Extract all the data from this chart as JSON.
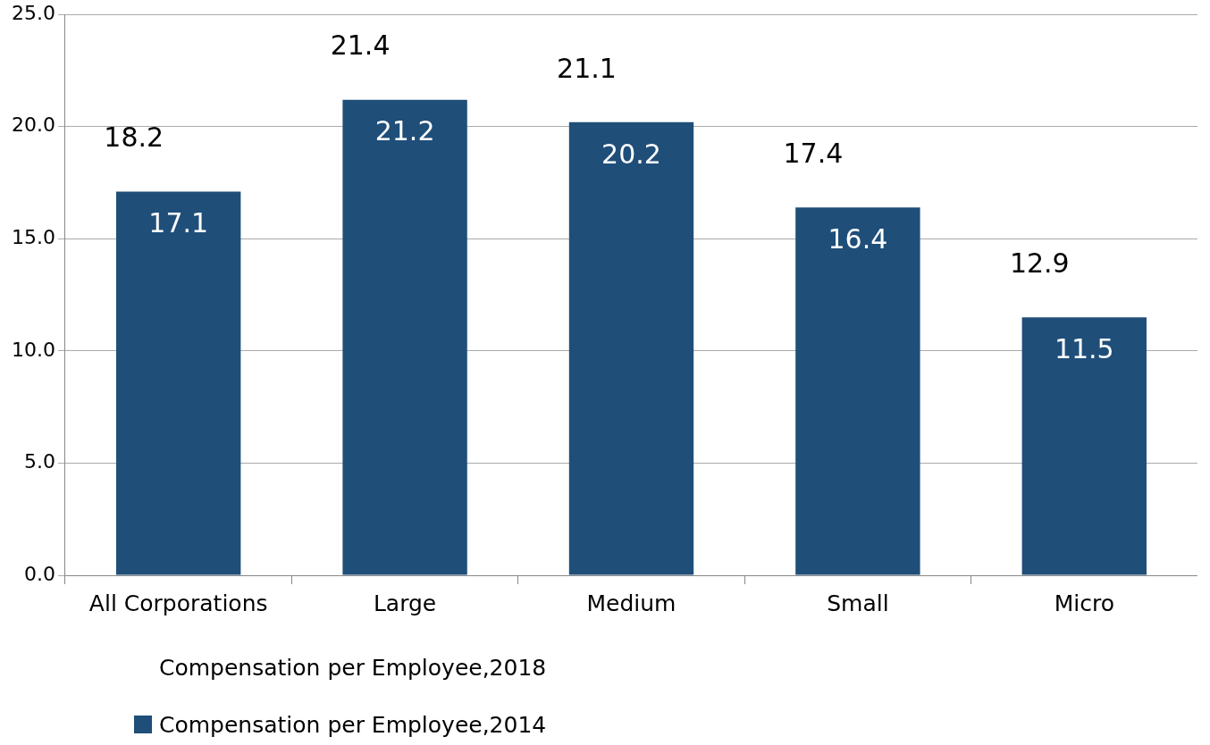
{
  "chart_data": {
    "type": "bar",
    "categories": [
      "All Corporations",
      "Large",
      "Medium",
      "Small",
      "Micro"
    ],
    "series": [
      {
        "name": "Compensation per Employee,2014",
        "color": "#1f4e79",
        "values": [
          17.1,
          21.2,
          20.2,
          16.4,
          11.5
        ]
      }
    ],
    "legend_title": "Compensation per Employee,2018",
    "annotations": [
      "18.2",
      "21.4",
      "21.1",
      "17.4",
      "12.9"
    ],
    "ylim": [
      0,
      25
    ],
    "yticks": [
      {
        "value": 0,
        "label": "0.0"
      },
      {
        "value": 5,
        "label": "5.0"
      },
      {
        "value": 10,
        "label": "10.0"
      },
      {
        "value": 15,
        "label": "15.0"
      },
      {
        "value": 20,
        "label": "20.0"
      },
      {
        "value": 25,
        "label": "25.0"
      }
    ],
    "grid": "y",
    "legend": "bottom left",
    "data_labels": true
  }
}
